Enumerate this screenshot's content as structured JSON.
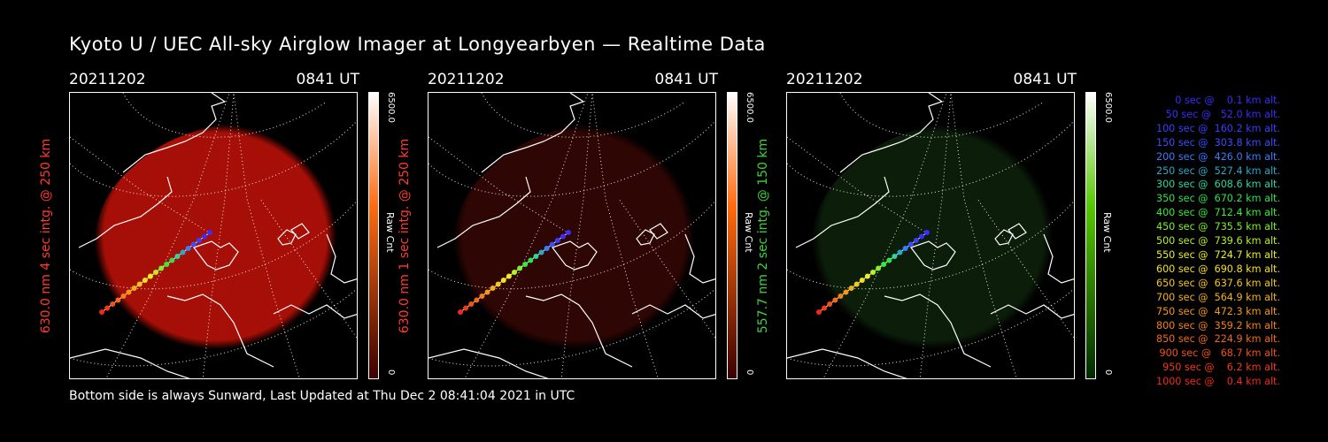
{
  "title": "Kyoto U / UEC All-sky Airglow Imager at Longyearbyen — Realtime Data",
  "footer": "Bottom side is always Sunward, Last Updated at Thu Dec  2 08:41:04 2021 in UTC",
  "panels": [
    {
      "date": "20211202",
      "time": "0841 UT",
      "ylabel": "630.0 nm  4 sec intg. @ 250 km",
      "label_color": "#ff3b2f",
      "cbar_max": "6500.0",
      "cbar_min": "0",
      "cbar_unit": "Raw Cnt",
      "cbar_top": "#ffffff",
      "cbar_mid": "#ff6a10",
      "cbar_bottom": "#3a0000",
      "sky_color": "#c41208",
      "sky_intensity": 0.85
    },
    {
      "date": "20211202",
      "time": "0841 UT",
      "ylabel": "630.0 nm  1 sec intg. @ 250 km",
      "label_color": "#ff3b2f",
      "cbar_max": "6500.0",
      "cbar_min": "0",
      "cbar_unit": "Raw Cnt",
      "cbar_top": "#ffffff",
      "cbar_mid": "#ff6a10",
      "cbar_bottom": "#3a0000",
      "sky_color": "#5c0c08",
      "sky_intensity": 0.5
    },
    {
      "date": "20211202",
      "time": "0841 UT",
      "ylabel": "557.7 nm  2 sec intg. @ 150 km",
      "label_color": "#3cd43c",
      "cbar_max": "6500.0",
      "cbar_min": "0",
      "cbar_unit": "Raw Cnt",
      "cbar_top": "#ffffff",
      "cbar_mid": "#54c800",
      "cbar_bottom": "#002a00",
      "sky_color": "#1d4a1a",
      "sky_intensity": 0.4
    }
  ],
  "legend": [
    {
      "text": "   0 sec @    0.1 km alt.",
      "color": "#3a2cff"
    },
    {
      "text": "  50 sec @   52.0 km alt.",
      "color": "#3a2cff"
    },
    {
      "text": " 100 sec @  160.2 km alt.",
      "color": "#3a3cff"
    },
    {
      "text": " 150 sec @  303.8 km alt.",
      "color": "#3a4cff"
    },
    {
      "text": " 200 sec @  426.0 km alt.",
      "color": "#3a7cff"
    },
    {
      "text": " 250 sec @  527.4 km alt.",
      "color": "#2aa8c8"
    },
    {
      "text": " 300 sec @  608.6 km alt.",
      "color": "#2ad6a0"
    },
    {
      "text": " 350 sec @  670.2 km alt.",
      "color": "#2ee050"
    },
    {
      "text": " 400 sec @  712.4 km alt.",
      "color": "#38ea38"
    },
    {
      "text": " 450 sec @  735.5 km alt.",
      "color": "#7ef028"
    },
    {
      "text": " 500 sec @  739.6 km alt.",
      "color": "#b8f020"
    },
    {
      "text": " 550 sec @  724.7 km alt.",
      "color": "#e8f020"
    },
    {
      "text": " 600 sec @  690.8 km alt.",
      "color": "#f4e020"
    },
    {
      "text": " 650 sec @  637.6 km alt.",
      "color": "#f4c81c"
    },
    {
      "text": " 700 sec @  564.9 km alt.",
      "color": "#f4b018"
    },
    {
      "text": " 750 sec @  472.3 km alt.",
      "color": "#f49818"
    },
    {
      "text": " 800 sec @  359.2 km alt.",
      "color": "#f48018"
    },
    {
      "text": " 850 sec @  224.9 km alt.",
      "color": "#f46818"
    },
    {
      "text": " 900 sec @   68.7 km alt.",
      "color": "#f45018"
    },
    {
      "text": " 950 sec @    6.2 km alt.",
      "color": "#f43818"
    },
    {
      "text": "1000 sec @    0.4 km alt.",
      "color": "#f42818"
    }
  ]
}
